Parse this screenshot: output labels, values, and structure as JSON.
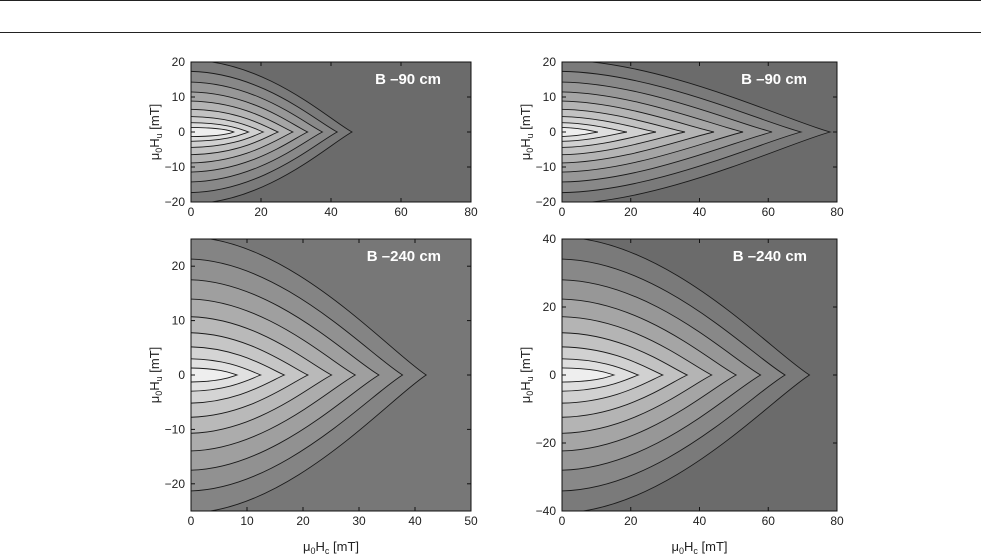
{
  "chart_data": [
    {
      "type": "contour",
      "title": "B –90 cm",
      "xlabel": "",
      "ylabel": "μ0Hu [mT]",
      "xlim": [
        0,
        80
      ],
      "ylim": [
        -20,
        20
      ],
      "xticks": [
        0,
        20,
        40,
        60,
        80
      ],
      "yticks": [
        -20,
        -10,
        0,
        10,
        20
      ],
      "peak": {
        "x": 8,
        "y": 0
      },
      "ridge_end_x": 46,
      "background_color": "#6b6b6b",
      "peak_color": "#eeeeee"
    },
    {
      "type": "contour",
      "title": "B –90 cm",
      "xlabel": "",
      "ylabel": "μ0Hu [mT]",
      "xlim": [
        0,
        80
      ],
      "ylim": [
        -20,
        20
      ],
      "xticks": [
        0,
        20,
        40,
        60,
        80
      ],
      "yticks": [
        -20,
        -10,
        0,
        10,
        20
      ],
      "peak": {
        "x": 2,
        "y": 0
      },
      "ridge_end_x": 78,
      "background_color": "#6b6b6b",
      "peak_color": "#eeeeee"
    },
    {
      "type": "contour",
      "title": "B –240 cm",
      "xlabel": "μ0Hc [mT]",
      "ylabel": "μ0Hu [mT]",
      "xlim": [
        0,
        50
      ],
      "ylim": [
        -25,
        25
      ],
      "xticks": [
        0,
        10,
        20,
        30,
        40,
        50
      ],
      "yticks": [
        -20,
        -10,
        0,
        10,
        20
      ],
      "peak": {
        "x": 4,
        "y": 0
      },
      "ridge_end_x": 42,
      "background_color": "#777777",
      "peak_color": "#eeeeee"
    },
    {
      "type": "contour",
      "title": "B –240 cm",
      "xlabel": "μ0Hc [mT]",
      "ylabel": "μ0Hu [mT]",
      "xlim": [
        0,
        80
      ],
      "ylim": [
        -40,
        40
      ],
      "xticks": [
        0,
        20,
        40,
        60,
        80
      ],
      "yticks": [
        -40,
        -20,
        0,
        20,
        40
      ],
      "peak": {
        "x": 8,
        "y": 0
      },
      "ridge_end_x": 72,
      "background_color": "#6b6b6b",
      "peak_color": "#eeeeee"
    }
  ]
}
